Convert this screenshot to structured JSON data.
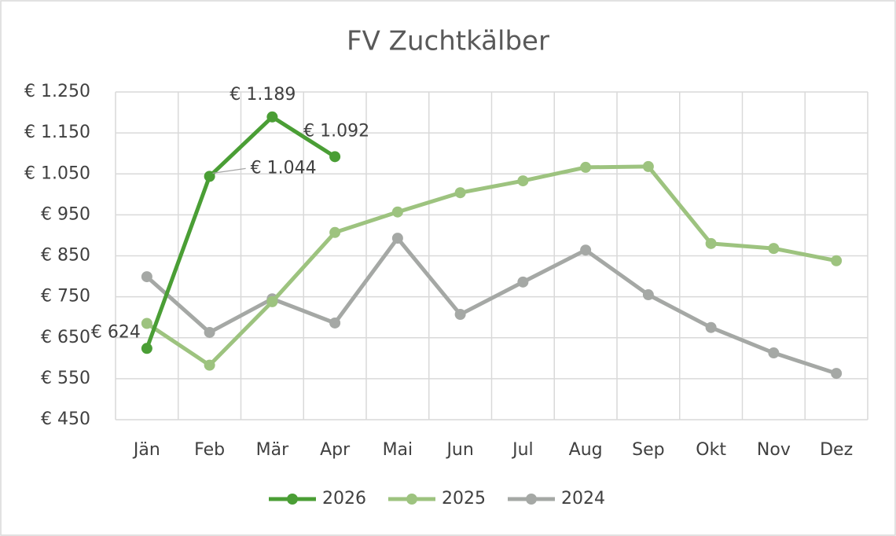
{
  "chart_data": {
    "type": "line",
    "title": "FV Zuchtkälber",
    "categories": [
      "Jän",
      "Feb",
      "Mär",
      "Apr",
      "Mai",
      "Jun",
      "Jul",
      "Aug",
      "Sep",
      "Okt",
      "Nov",
      "Dez"
    ],
    "series": [
      {
        "name": "2026",
        "color": "#4a9e35",
        "values": [
          624,
          1044,
          1189,
          1092,
          null,
          null,
          null,
          null,
          null,
          null,
          null,
          null
        ],
        "value_labels": [
          "€ 624",
          "€ 1.044",
          "€ 1.189",
          "€ 1.092",
          null,
          null,
          null,
          null,
          null,
          null,
          null,
          null
        ]
      },
      {
        "name": "2025",
        "color": "#9dc37f",
        "values": [
          685,
          583,
          738,
          907,
          957,
          1004,
          1033,
          1066,
          1068,
          880,
          868,
          838
        ]
      },
      {
        "name": "2024",
        "color": "#a5a8a5",
        "values": [
          799,
          663,
          745,
          686,
          893,
          707,
          786,
          864,
          755,
          675,
          613,
          563
        ]
      }
    ],
    "ylim": [
      450,
      1250
    ],
    "yticks": [
      {
        "value": 450,
        "label": "€ 450"
      },
      {
        "value": 550,
        "label": "€ 550"
      },
      {
        "value": 650,
        "label": "€ 650"
      },
      {
        "value": 750,
        "label": "€ 750"
      },
      {
        "value": 850,
        "label": "€ 850"
      },
      {
        "value": 950,
        "label": "€ 950"
      },
      {
        "value": 1050,
        "label": "€ 1.050"
      },
      {
        "value": 1150,
        "label": "€ 1.150"
      },
      {
        "value": 1250,
        "label": "€ 1.250"
      }
    ],
    "grid": true,
    "legend": "bottom"
  }
}
